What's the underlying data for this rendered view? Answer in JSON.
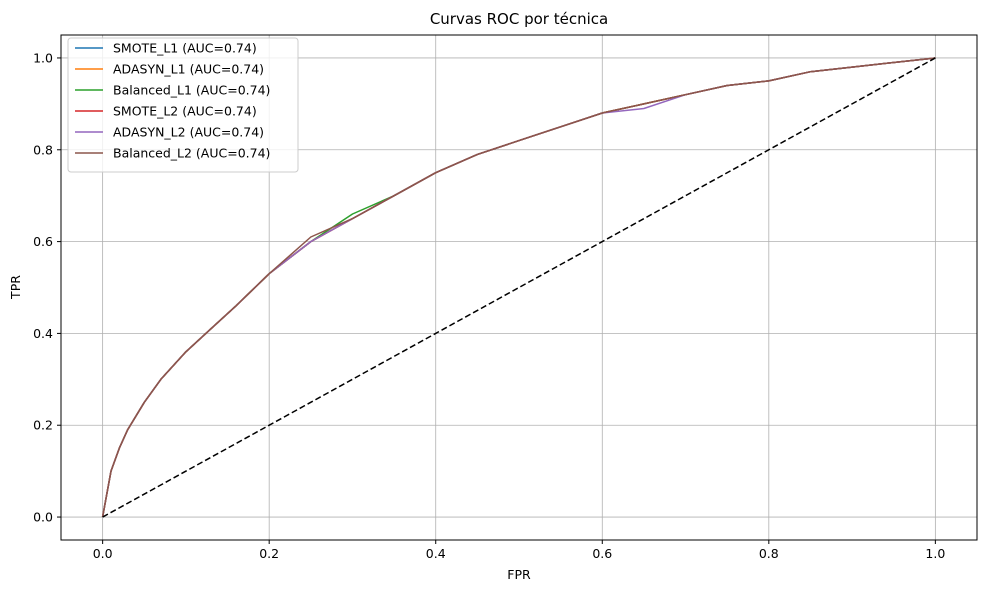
{
  "chart_data": {
    "type": "line",
    "title": "Curvas ROC por técnica",
    "xlabel": "FPR",
    "ylabel": "TPR",
    "xlim": [
      -0.05,
      1.05
    ],
    "ylim": [
      -0.05,
      1.05
    ],
    "xticks": [
      "0.0",
      "0.2",
      "0.4",
      "0.6",
      "0.8",
      "1.0"
    ],
    "yticks": [
      "0.0",
      "0.2",
      "0.4",
      "0.6",
      "0.8",
      "1.0"
    ],
    "grid": true,
    "legend_position": "top-left",
    "x": [
      0.0,
      0.01,
      0.02,
      0.03,
      0.05,
      0.07,
      0.1,
      0.13,
      0.16,
      0.2,
      0.25,
      0.3,
      0.35,
      0.4,
      0.45,
      0.5,
      0.55,
      0.6,
      0.65,
      0.7,
      0.75,
      0.8,
      0.85,
      0.9,
      0.95,
      1.0
    ],
    "series": [
      {
        "name": "SMOTE_L1 (AUC=0.74)",
        "color": "#1f77b4",
        "values": [
          0.0,
          0.1,
          0.15,
          0.19,
          0.25,
          0.3,
          0.36,
          0.41,
          0.46,
          0.53,
          0.6,
          0.65,
          0.7,
          0.75,
          0.79,
          0.82,
          0.85,
          0.88,
          0.9,
          0.92,
          0.94,
          0.95,
          0.97,
          0.98,
          0.99,
          1.0
        ]
      },
      {
        "name": "ADASYN_L1 (AUC=0.74)",
        "color": "#ff7f0e",
        "values": [
          0.0,
          0.1,
          0.15,
          0.19,
          0.25,
          0.3,
          0.36,
          0.41,
          0.46,
          0.53,
          0.6,
          0.65,
          0.7,
          0.75,
          0.79,
          0.82,
          0.85,
          0.88,
          0.9,
          0.92,
          0.94,
          0.95,
          0.97,
          0.98,
          0.99,
          1.0
        ]
      },
      {
        "name": "Balanced_L1 (AUC=0.74)",
        "color": "#2ca02c",
        "values": [
          0.0,
          0.1,
          0.15,
          0.19,
          0.25,
          0.3,
          0.36,
          0.41,
          0.46,
          0.53,
          0.6,
          0.66,
          0.7,
          0.75,
          0.79,
          0.82,
          0.85,
          0.88,
          0.9,
          0.92,
          0.94,
          0.95,
          0.97,
          0.98,
          0.99,
          1.0
        ]
      },
      {
        "name": "SMOTE_L2 (AUC=0.74)",
        "color": "#d62728",
        "values": [
          0.0,
          0.1,
          0.15,
          0.19,
          0.25,
          0.3,
          0.36,
          0.41,
          0.46,
          0.53,
          0.6,
          0.65,
          0.7,
          0.75,
          0.79,
          0.82,
          0.85,
          0.88,
          0.9,
          0.92,
          0.94,
          0.95,
          0.97,
          0.98,
          0.99,
          1.0
        ]
      },
      {
        "name": "ADASYN_L2 (AUC=0.74)",
        "color": "#9467bd",
        "values": [
          0.0,
          0.1,
          0.15,
          0.19,
          0.25,
          0.3,
          0.36,
          0.41,
          0.46,
          0.53,
          0.6,
          0.65,
          0.7,
          0.75,
          0.79,
          0.82,
          0.85,
          0.88,
          0.89,
          0.92,
          0.94,
          0.95,
          0.97,
          0.98,
          0.99,
          1.0
        ]
      },
      {
        "name": "Balanced_L2 (AUC=0.74)",
        "color": "#8c564b",
        "values": [
          0.0,
          0.1,
          0.15,
          0.19,
          0.25,
          0.3,
          0.36,
          0.41,
          0.46,
          0.53,
          0.61,
          0.65,
          0.7,
          0.75,
          0.79,
          0.82,
          0.85,
          0.88,
          0.9,
          0.92,
          0.94,
          0.95,
          0.97,
          0.98,
          0.99,
          1.0
        ]
      }
    ],
    "reference_line": {
      "x": [
        0.0,
        1.0
      ],
      "y": [
        0.0,
        1.0
      ],
      "color": "#000000",
      "style": "dashed"
    }
  }
}
